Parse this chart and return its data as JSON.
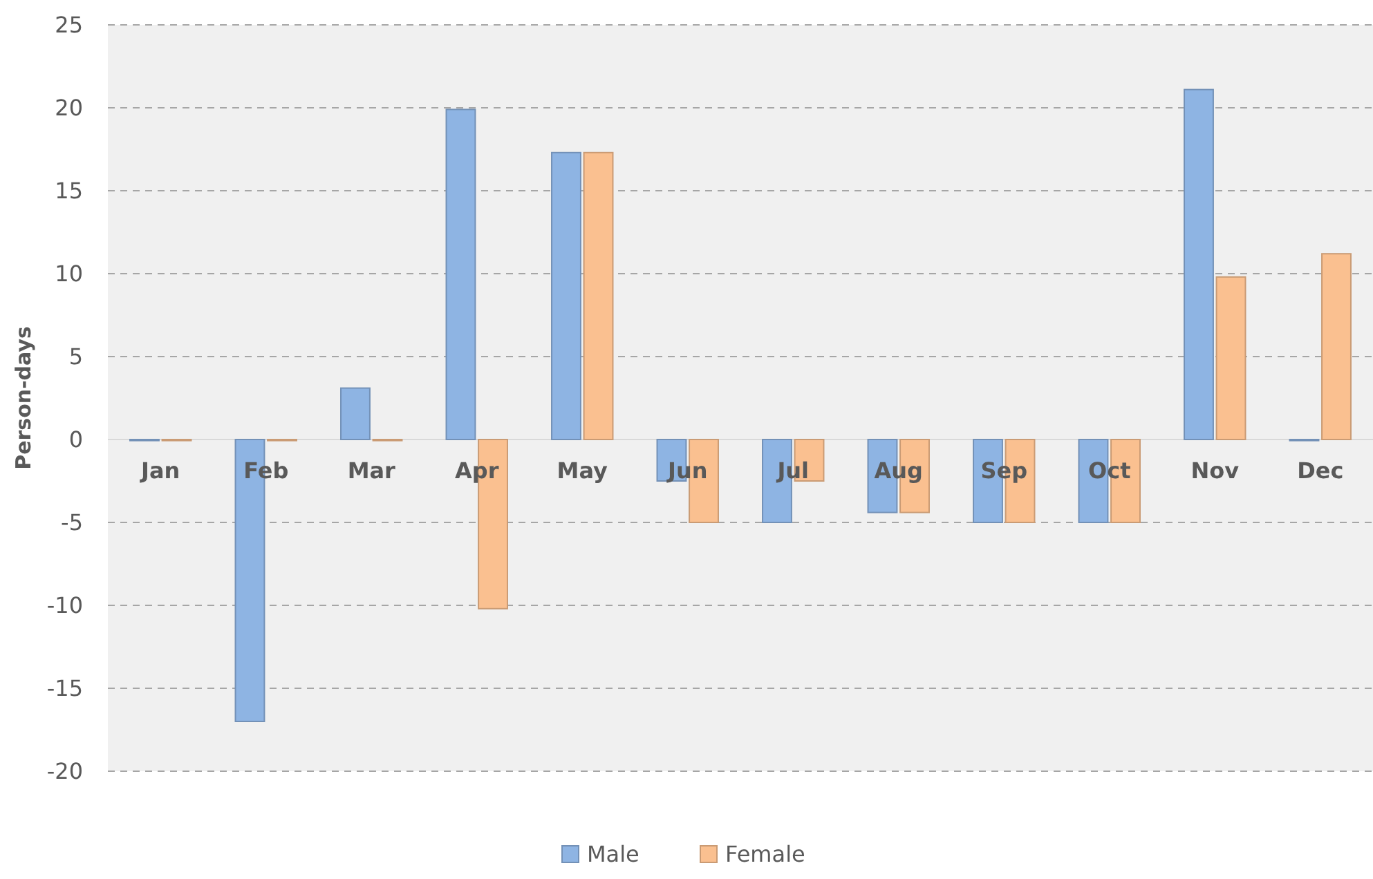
{
  "chart_data": {
    "type": "bar",
    "ylabel": "Person-days",
    "categories": [
      "Jan",
      "Feb",
      "Mar",
      "Apr",
      "May",
      "Jun",
      "Jul",
      "Aug",
      "Sep",
      "Oct",
      "Nov",
      "Dec"
    ],
    "series": [
      {
        "name": "Male",
        "color": "#8eb4e3",
        "values": [
          0,
          -17,
          3.1,
          19.9,
          17.3,
          -2.5,
          -5,
          -4.4,
          -5,
          -5,
          21.1,
          0
        ]
      },
      {
        "name": "Female",
        "color": "#fac090",
        "values": [
          0,
          0,
          0,
          -10.2,
          17.3,
          -5,
          -2.5,
          -4.4,
          -5,
          -5,
          9.8,
          11.2
        ]
      }
    ],
    "ylim": [
      -20,
      25
    ],
    "yticks": [
      -20,
      -15,
      -10,
      -5,
      0,
      5,
      10,
      15,
      20,
      25
    ],
    "grid": "y",
    "legend": "bottom"
  }
}
